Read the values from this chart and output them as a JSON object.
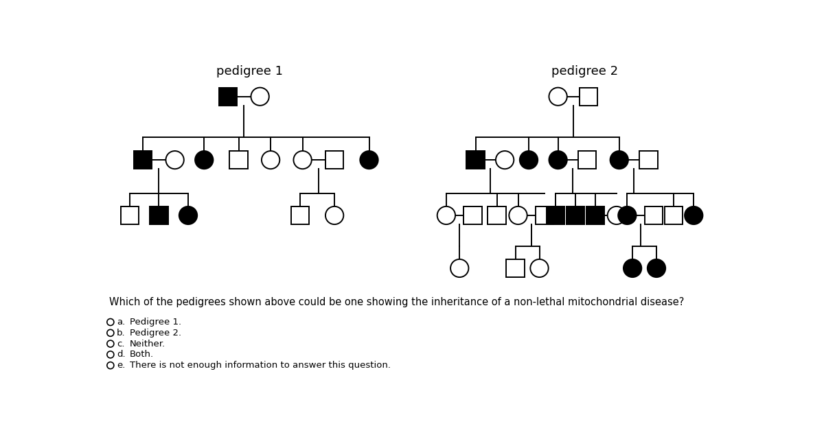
{
  "title1": "pedigree 1",
  "title2": "pedigree 2",
  "question": "Which of the pedigrees shown above could be one showing the inheritance of a non-lethal mitochondrial disease?",
  "options": [
    {
      "label": "a.",
      "text": "Pedigree 1."
    },
    {
      "label": "b.",
      "text": "Pedigree 2."
    },
    {
      "label": "c.",
      "text": "Neither."
    },
    {
      "label": "d.",
      "text": "Both."
    },
    {
      "label": "e.",
      "text": "There is not enough information to answer this question."
    }
  ],
  "lw": 1.4,
  "bg_color": "#ffffff",
  "fg_color": "#000000",
  "sz": 0.17
}
